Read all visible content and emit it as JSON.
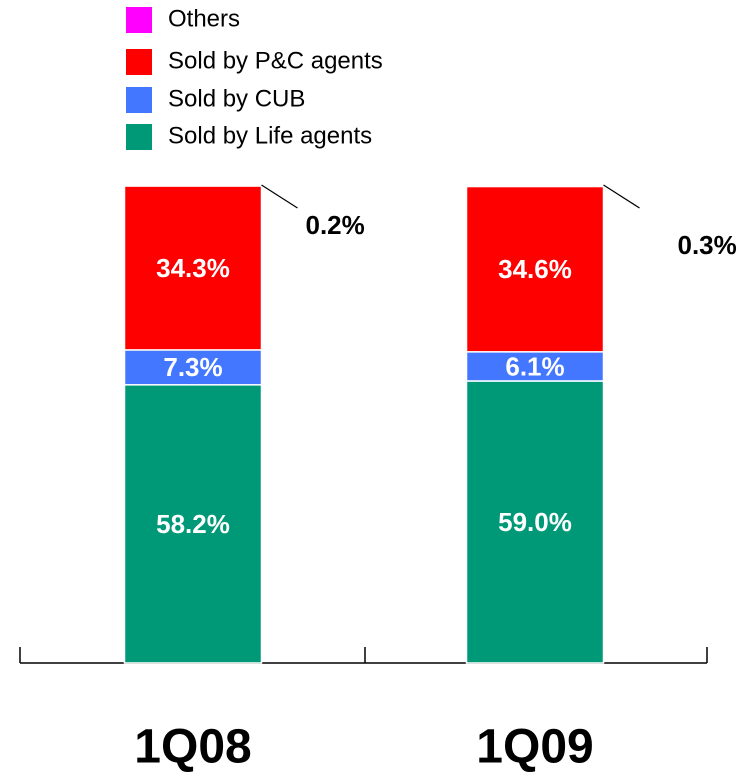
{
  "chart_data": {
    "type": "stacked_bar",
    "categories": [
      "1Q08",
      "1Q09"
    ],
    "series": [
      {
        "name": "Sold by Life agents",
        "color": "#009977",
        "values": [
          58.2,
          59.0
        ],
        "value_labels": [
          "58.2%",
          "59.0%"
        ]
      },
      {
        "name": "Sold by CUB",
        "color": "#4477ff",
        "values": [
          7.3,
          6.1
        ],
        "value_labels": [
          "7.3%",
          "6.1%"
        ]
      },
      {
        "name": "Sold by P&C agents",
        "color": "#ff0000",
        "values": [
          34.3,
          34.6
        ],
        "value_labels": [
          "34.3%",
          "34.6%"
        ]
      },
      {
        "name": "Others",
        "color": "#ff00ff",
        "values": [
          0.2,
          0.3
        ],
        "value_labels": [
          "0.2%",
          "0.3%"
        ]
      }
    ]
  }
}
